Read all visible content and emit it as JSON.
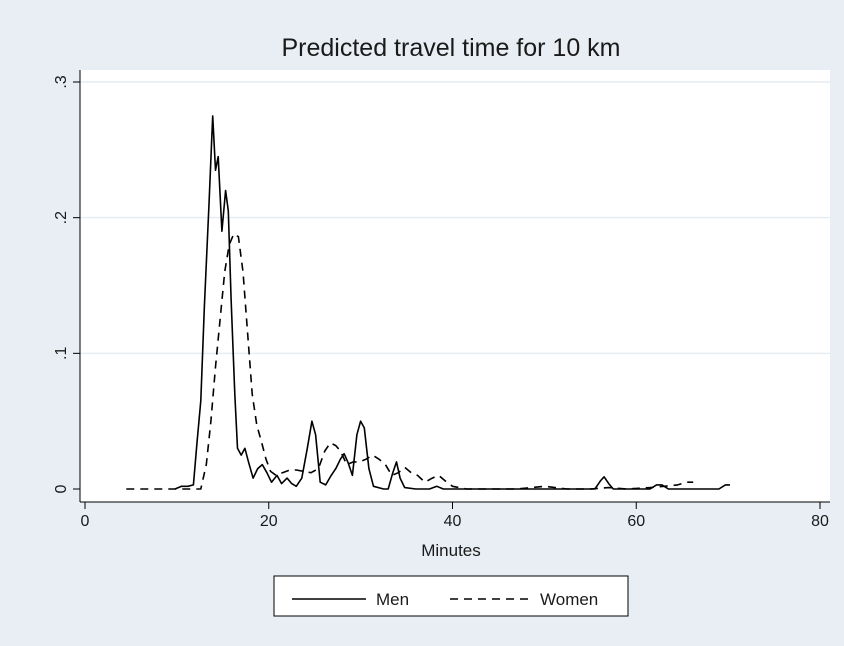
{
  "chart_data": {
    "type": "line",
    "title": "Predicted travel time for 10 km",
    "xlabel": "Minutes",
    "ylabel": "",
    "xlim": [
      0,
      80
    ],
    "ylim": [
      0,
      0.3
    ],
    "x_ticks": [
      0,
      20,
      40,
      60,
      80
    ],
    "x_tick_labels": [
      "0",
      "20",
      "40",
      "60",
      "80"
    ],
    "y_ticks": [
      0,
      0.1,
      0.2,
      0.3
    ],
    "y_tick_labels": [
      "0",
      ".1",
      ".2",
      ".3"
    ],
    "grid": true,
    "legend_position": "bottom",
    "series": [
      {
        "name": "Men",
        "style": "solid",
        "color": "#000000",
        "points": [
          [
            9.8,
            0.0
          ],
          [
            10.5,
            0.002
          ],
          [
            11.2,
            0.002
          ],
          [
            11.8,
            0.003
          ],
          [
            12.2,
            0.035
          ],
          [
            12.6,
            0.065
          ],
          [
            13.0,
            0.135
          ],
          [
            13.5,
            0.21
          ],
          [
            13.9,
            0.275
          ],
          [
            14.2,
            0.235
          ],
          [
            14.5,
            0.245
          ],
          [
            14.9,
            0.19
          ],
          [
            15.3,
            0.22
          ],
          [
            15.6,
            0.205
          ],
          [
            15.9,
            0.14
          ],
          [
            16.3,
            0.07
          ],
          [
            16.6,
            0.03
          ],
          [
            17.0,
            0.025
          ],
          [
            17.4,
            0.03
          ],
          [
            17.8,
            0.02
          ],
          [
            18.3,
            0.008
          ],
          [
            18.8,
            0.015
          ],
          [
            19.3,
            0.018
          ],
          [
            19.8,
            0.012
          ],
          [
            20.3,
            0.005
          ],
          [
            20.9,
            0.01
          ],
          [
            21.4,
            0.004
          ],
          [
            22.0,
            0.008
          ],
          [
            22.5,
            0.004
          ],
          [
            23.0,
            0.002
          ],
          [
            23.6,
            0.008
          ],
          [
            24.2,
            0.03
          ],
          [
            24.7,
            0.05
          ],
          [
            25.1,
            0.04
          ],
          [
            25.6,
            0.005
          ],
          [
            26.2,
            0.003
          ],
          [
            26.8,
            0.01
          ],
          [
            27.3,
            0.015
          ],
          [
            27.8,
            0.022
          ],
          [
            28.2,
            0.026
          ],
          [
            28.6,
            0.02
          ],
          [
            29.1,
            0.01
          ],
          [
            29.6,
            0.04
          ],
          [
            30.0,
            0.05
          ],
          [
            30.4,
            0.045
          ],
          [
            30.9,
            0.015
          ],
          [
            31.4,
            0.002
          ],
          [
            32.5,
            0.0
          ],
          [
            33.0,
            0.0
          ],
          [
            33.5,
            0.012
          ],
          [
            33.9,
            0.02
          ],
          [
            34.3,
            0.008
          ],
          [
            34.8,
            0.001
          ],
          [
            36.0,
            0.0
          ],
          [
            37.5,
            0.0
          ],
          [
            38.3,
            0.002
          ],
          [
            39.0,
            0.0
          ],
          [
            45.0,
            0.0
          ],
          [
            52.0,
            0.0
          ],
          [
            55.5,
            0.0
          ],
          [
            56.1,
            0.006
          ],
          [
            56.5,
            0.009
          ],
          [
            57.0,
            0.004
          ],
          [
            57.5,
            0.0
          ],
          [
            61.5,
            0.0
          ],
          [
            62.2,
            0.003
          ],
          [
            62.8,
            0.003
          ],
          [
            63.5,
            0.0
          ],
          [
            68.0,
            0.0
          ],
          [
            69.0,
            0.0
          ],
          [
            69.7,
            0.003
          ],
          [
            70.2,
            0.003
          ]
        ]
      },
      {
        "name": "Women",
        "style": "dashed",
        "color": "#000000",
        "points": [
          [
            4.5,
            0.0
          ],
          [
            6.5,
            0.0
          ],
          [
            8.5,
            0.0
          ],
          [
            10.5,
            0.0
          ],
          [
            11.8,
            0.0
          ],
          [
            12.6,
            0.0
          ],
          [
            13.2,
            0.018
          ],
          [
            13.7,
            0.05
          ],
          [
            14.2,
            0.09
          ],
          [
            14.7,
            0.125
          ],
          [
            15.2,
            0.16
          ],
          [
            15.7,
            0.18
          ],
          [
            16.2,
            0.188
          ],
          [
            16.7,
            0.186
          ],
          [
            17.2,
            0.16
          ],
          [
            17.7,
            0.115
          ],
          [
            18.2,
            0.07
          ],
          [
            18.7,
            0.047
          ],
          [
            19.2,
            0.035
          ],
          [
            19.7,
            0.022
          ],
          [
            20.2,
            0.013
          ],
          [
            20.8,
            0.01
          ],
          [
            21.5,
            0.012
          ],
          [
            22.3,
            0.014
          ],
          [
            23.0,
            0.014
          ],
          [
            23.8,
            0.013
          ],
          [
            24.6,
            0.012
          ],
          [
            25.4,
            0.015
          ],
          [
            26.1,
            0.028
          ],
          [
            26.7,
            0.034
          ],
          [
            27.3,
            0.032
          ],
          [
            27.8,
            0.028
          ],
          [
            28.5,
            0.018
          ],
          [
            29.2,
            0.02
          ],
          [
            29.9,
            0.02
          ],
          [
            30.6,
            0.022
          ],
          [
            31.3,
            0.025
          ],
          [
            32.0,
            0.022
          ],
          [
            32.7,
            0.018
          ],
          [
            33.4,
            0.01
          ],
          [
            34.1,
            0.012
          ],
          [
            34.8,
            0.016
          ],
          [
            35.5,
            0.012
          ],
          [
            36.2,
            0.01
          ],
          [
            37.0,
            0.005
          ],
          [
            37.8,
            0.008
          ],
          [
            38.5,
            0.01
          ],
          [
            39.2,
            0.006
          ],
          [
            40.0,
            0.002
          ],
          [
            41.5,
            0.0
          ],
          [
            44.0,
            0.0
          ],
          [
            47.0,
            0.0
          ],
          [
            50.0,
            0.002
          ],
          [
            52.5,
            0.0
          ],
          [
            55.0,
            0.0
          ],
          [
            57.0,
            0.001
          ],
          [
            59.0,
            0.0
          ],
          [
            61.5,
            0.001
          ],
          [
            63.0,
            0.002
          ],
          [
            64.5,
            0.003
          ],
          [
            65.5,
            0.005
          ],
          [
            66.2,
            0.005
          ]
        ]
      }
    ]
  }
}
